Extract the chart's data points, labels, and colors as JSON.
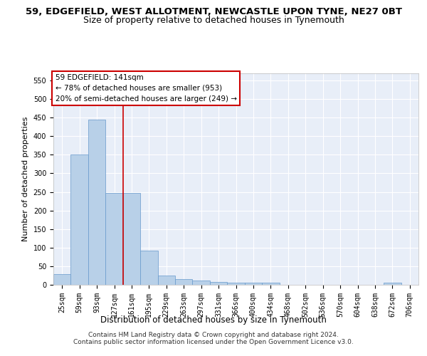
{
  "title1": "59, EDGEFIELD, WEST ALLOTMENT, NEWCASTLE UPON TYNE, NE27 0BT",
  "title2": "Size of property relative to detached houses in Tynemouth",
  "xlabel": "Distribution of detached houses by size in Tynemouth",
  "ylabel": "Number of detached properties",
  "categories": [
    "25sqm",
    "59sqm",
    "93sqm",
    "127sqm",
    "161sqm",
    "195sqm",
    "229sqm",
    "263sqm",
    "297sqm",
    "331sqm",
    "366sqm",
    "400sqm",
    "434sqm",
    "468sqm",
    "502sqm",
    "536sqm",
    "570sqm",
    "604sqm",
    "638sqm",
    "672sqm",
    "706sqm"
  ],
  "values": [
    28,
    350,
    445,
    248,
    248,
    92,
    25,
    15,
    12,
    8,
    6,
    6,
    5,
    0,
    0,
    0,
    0,
    0,
    0,
    5,
    0
  ],
  "bar_color": "#b8d0e8",
  "bar_edgecolor": "#6699cc",
  "red_line_x": 3.5,
  "annotation_text": "59 EDGEFIELD: 141sqm\n← 78% of detached houses are smaller (953)\n20% of semi-detached houses are larger (249) →",
  "annotation_box_color": "#ffffff",
  "annotation_box_edgecolor": "#cc0000",
  "ylim": [
    0,
    570
  ],
  "yticks": [
    0,
    50,
    100,
    150,
    200,
    250,
    300,
    350,
    400,
    450,
    500,
    550
  ],
  "background_color": "#e8eef8",
  "grid_color": "#ffffff",
  "footer1": "Contains HM Land Registry data © Crown copyright and database right 2024.",
  "footer2": "Contains public sector information licensed under the Open Government Licence v3.0.",
  "title1_fontsize": 9.5,
  "title2_fontsize": 9,
  "xlabel_fontsize": 8.5,
  "ylabel_fontsize": 8,
  "tick_fontsize": 7,
  "annotation_fontsize": 7.5,
  "footer_fontsize": 6.5
}
